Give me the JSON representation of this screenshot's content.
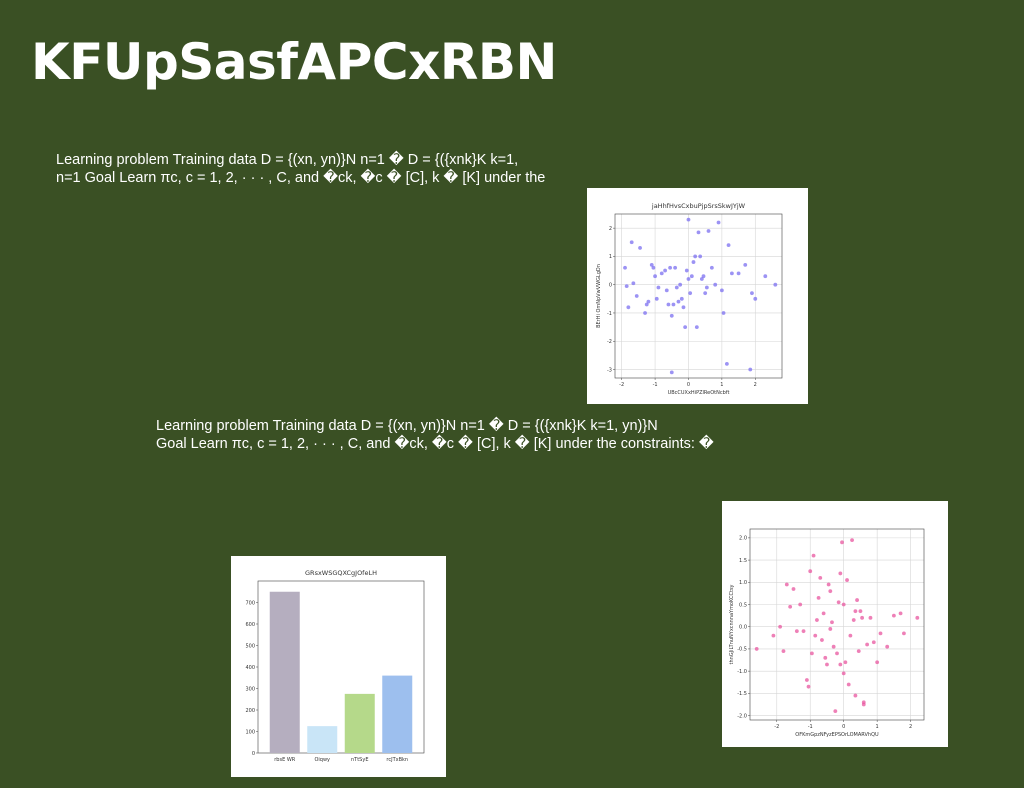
{
  "slide": {
    "title": "KFUpSasfAPCxRBN",
    "paragraph1": {
      "line1": "Learning problem Training data D = {(xn, yn)}N n=1 � D = {({xnk}K k=1,",
      "line2": "n=1 Goal Learn πc, c = 1, 2, · · · , C, and �ck, �c � [C], k � [K] under the"
    },
    "paragraph2": {
      "line1": "Learning problem Training data D = {(xn, yn)}N n=1 � D = {({xnk}K k=1, yn)}N",
      "line2": "Goal Learn πc, c = 1, 2, · · · , C, and �ck, �c � [C], k � [K] under the constraints: �"
    }
  },
  "chart_data": [
    {
      "type": "scatter",
      "title": "jaHhfHvsCxbuPjpSrsSkwJYjW",
      "xlabel": "UBcCUXxHiPZlReOtNcbft",
      "ylabel": "BErHi OmNpVwVWGLgDn",
      "xlim": [
        -2.2,
        2.8
      ],
      "ylim": [
        -3.3,
        2.5
      ],
      "xticks": [
        -2,
        -1,
        0,
        1,
        2
      ],
      "yticks": [
        -3,
        -2,
        -1,
        0,
        1,
        2
      ],
      "grid": true,
      "color": "#7b6ff0",
      "x": [
        -1.9,
        -1.85,
        -1.8,
        -1.7,
        -1.65,
        -1.55,
        -1.45,
        -1.3,
        -1.25,
        -1.2,
        -1.1,
        -1.05,
        -1.0,
        -0.95,
        -0.9,
        -0.8,
        -0.7,
        -0.65,
        -0.6,
        -0.55,
        -0.5,
        -0.45,
        -0.4,
        -0.35,
        -0.3,
        -0.25,
        -0.2,
        -0.15,
        -0.1,
        -0.05,
        0.0,
        0.0,
        0.05,
        0.1,
        0.15,
        0.2,
        0.25,
        0.3,
        0.35,
        0.4,
        0.45,
        0.5,
        0.55,
        0.6,
        0.7,
        0.8,
        0.9,
        1.0,
        1.05,
        1.15,
        1.2,
        1.3,
        1.5,
        1.7,
        1.9,
        2.0,
        2.3,
        2.6,
        -0.5,
        1.85
      ],
      "y": [
        0.6,
        -0.05,
        -0.8,
        1.5,
        0.05,
        -0.4,
        1.3,
        -1.0,
        -0.7,
        -0.6,
        0.7,
        0.6,
        0.3,
        -0.5,
        -0.1,
        0.4,
        0.5,
        -0.2,
        -0.7,
        0.6,
        -1.1,
        -0.7,
        0.6,
        -0.1,
        -0.6,
        0.0,
        -0.5,
        -0.8,
        -1.5,
        0.5,
        0.2,
        2.3,
        -0.3,
        0.3,
        0.8,
        1.0,
        -1.5,
        1.85,
        1.0,
        0.2,
        0.3,
        -0.3,
        -0.1,
        1.9,
        0.6,
        0.0,
        2.2,
        -0.2,
        -1.0,
        -2.8,
        1.4,
        0.4,
        0.4,
        0.7,
        -0.3,
        -0.5,
        0.3,
        0.0,
        -3.1,
        -3.0
      ]
    },
    {
      "type": "scatter",
      "title": "",
      "xlabel": "OFKmGpzNFyzEPSOrLOMARVhQU",
      "ylabel": "thnGJiLTnuNYxcnnnaYmoKCCtsy",
      "xlim": [
        -2.8,
        2.4
      ],
      "ylim": [
        -2.1,
        2.2
      ],
      "xticks": [
        -2,
        -1,
        0,
        1,
        2
      ],
      "yticks": [
        -2.0,
        -1.5,
        -1.0,
        -0.5,
        0.0,
        0.5,
        1.0,
        1.5,
        2.0
      ],
      "grid": true,
      "color": "#e8559f",
      "x": [
        -2.6,
        -2.1,
        -1.9,
        -1.8,
        -1.7,
        -1.6,
        -1.5,
        -1.4,
        -1.3,
        -1.2,
        -1.1,
        -1.05,
        -1.0,
        -0.95,
        -0.9,
        -0.85,
        -0.8,
        -0.75,
        -0.7,
        -0.65,
        -0.6,
        -0.55,
        -0.5,
        -0.45,
        -0.4,
        -0.35,
        -0.3,
        -0.25,
        -0.2,
        -0.15,
        -0.1,
        -0.05,
        0.0,
        0.0,
        0.05,
        0.1,
        0.15,
        0.2,
        0.25,
        0.3,
        0.35,
        0.4,
        0.45,
        0.5,
        0.55,
        0.6,
        0.7,
        0.8,
        0.9,
        1.0,
        1.1,
        1.3,
        1.5,
        1.7,
        1.8,
        2.2,
        0.35,
        -0.4,
        0.6,
        -0.1
      ],
      "y": [
        -0.5,
        -0.2,
        0.0,
        -0.55,
        0.95,
        0.45,
        0.85,
        -0.1,
        0.5,
        -0.1,
        -1.2,
        -1.35,
        1.25,
        -0.6,
        1.6,
        -0.2,
        0.15,
        0.65,
        1.1,
        -0.3,
        0.3,
        -0.7,
        -0.85,
        0.95,
        0.8,
        0.1,
        -0.45,
        -1.9,
        -0.6,
        0.55,
        1.2,
        1.9,
        -1.05,
        0.5,
        -0.8,
        1.05,
        -1.3,
        -0.2,
        1.95,
        0.15,
        0.35,
        0.6,
        -0.55,
        0.35,
        0.2,
        -1.75,
        -0.4,
        0.2,
        -0.35,
        -0.8,
        -0.15,
        -0.45,
        0.25,
        0.3,
        -0.15,
        0.2,
        -1.55,
        -0.05,
        -1.7,
        -0.85
      ]
    },
    {
      "type": "bar",
      "title": "GRsxWSGQXCgJOfeLH",
      "categories": [
        "rbsE WR",
        "Oiqwy",
        "nTtSyE",
        "rcJTxBkn"
      ],
      "values": [
        750,
        125,
        275,
        360
      ],
      "colors": [
        "#b5aebf",
        "#c9e5f7",
        "#b5d98a",
        "#9dbfee"
      ],
      "ylim": [
        0,
        800
      ],
      "yticks": [
        0,
        100,
        200,
        300,
        400,
        500,
        600,
        700
      ],
      "grid": false
    }
  ]
}
